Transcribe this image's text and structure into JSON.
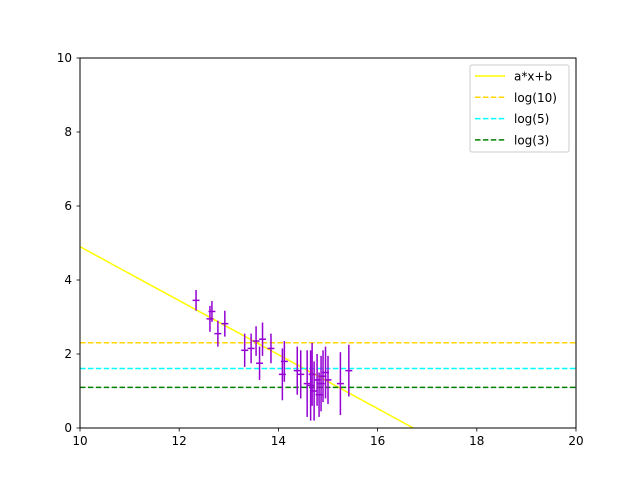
{
  "chart_data": {
    "type": "scatter",
    "title": "",
    "xlabel": "",
    "ylabel": "",
    "xlim": [
      10,
      20
    ],
    "ylim": [
      0,
      10
    ],
    "x_ticks": [
      10,
      12,
      14,
      16,
      18,
      20
    ],
    "y_ticks": [
      0,
      2,
      4,
      6,
      8,
      10
    ],
    "x_tick_labels": [
      "10",
      "12",
      "14",
      "16",
      "18",
      "20"
    ],
    "y_tick_labels": [
      "0",
      "2",
      "4",
      "6",
      "8",
      "10"
    ],
    "grid": false,
    "legend_position": "top-right",
    "series": [
      {
        "name": "a*x+b",
        "kind": "line",
        "style": "solid",
        "color": "#ffff00",
        "x": [
          10.0,
          16.72
        ],
        "y": [
          4.9,
          0.0
        ]
      },
      {
        "name": "log(10)",
        "kind": "hline",
        "style": "dashed",
        "color": "#ffd700",
        "y": 2.3026
      },
      {
        "name": "log(5)",
        "kind": "hline",
        "style": "dashed",
        "color": "#00ffff",
        "y": 1.6094
      },
      {
        "name": "log(3)",
        "kind": "hline",
        "style": "dashed",
        "color": "#008000",
        "y": 1.0986
      }
    ],
    "errorbar_series": {
      "color": "#9400d3",
      "points": [
        {
          "x": 12.34,
          "y": 3.45,
          "xerr": 0.07,
          "yerr": 0.28
        },
        {
          "x": 12.62,
          "y": 2.95,
          "xerr": 0.07,
          "yerr": 0.35
        },
        {
          "x": 12.66,
          "y": 3.15,
          "xerr": 0.07,
          "yerr": 0.28
        },
        {
          "x": 12.78,
          "y": 2.55,
          "xerr": 0.07,
          "yerr": 0.35
        },
        {
          "x": 12.92,
          "y": 2.82,
          "xerr": 0.07,
          "yerr": 0.35
        },
        {
          "x": 13.32,
          "y": 2.1,
          "xerr": 0.07,
          "yerr": 0.45
        },
        {
          "x": 13.45,
          "y": 2.15,
          "xerr": 0.07,
          "yerr": 0.4
        },
        {
          "x": 13.55,
          "y": 2.35,
          "xerr": 0.07,
          "yerr": 0.4
        },
        {
          "x": 13.62,
          "y": 1.75,
          "xerr": 0.07,
          "yerr": 0.45
        },
        {
          "x": 13.68,
          "y": 2.4,
          "xerr": 0.07,
          "yerr": 0.45
        },
        {
          "x": 13.85,
          "y": 2.15,
          "xerr": 0.07,
          "yerr": 0.4
        },
        {
          "x": 14.08,
          "y": 1.45,
          "xerr": 0.07,
          "yerr": 0.7
        },
        {
          "x": 14.12,
          "y": 1.8,
          "xerr": 0.07,
          "yerr": 0.55
        },
        {
          "x": 14.38,
          "y": 1.55,
          "xerr": 0.07,
          "yerr": 0.65
        },
        {
          "x": 14.45,
          "y": 1.45,
          "xerr": 0.07,
          "yerr": 0.65
        },
        {
          "x": 14.58,
          "y": 1.2,
          "xerr": 0.07,
          "yerr": 0.9
        },
        {
          "x": 14.65,
          "y": 1.15,
          "xerr": 0.07,
          "yerr": 0.95
        },
        {
          "x": 14.68,
          "y": 1.45,
          "xerr": 0.07,
          "yerr": 0.85
        },
        {
          "x": 14.72,
          "y": 1.0,
          "xerr": 0.07,
          "yerr": 0.8
        },
        {
          "x": 14.78,
          "y": 1.3,
          "xerr": 0.07,
          "yerr": 0.7
        },
        {
          "x": 14.82,
          "y": 0.9,
          "xerr": 0.07,
          "yerr": 0.6
        },
        {
          "x": 14.86,
          "y": 1.2,
          "xerr": 0.07,
          "yerr": 0.75
        },
        {
          "x": 14.9,
          "y": 1.4,
          "xerr": 0.07,
          "yerr": 0.7
        },
        {
          "x": 14.95,
          "y": 1.5,
          "xerr": 0.07,
          "yerr": 0.7
        },
        {
          "x": 15.0,
          "y": 1.3,
          "xerr": 0.07,
          "yerr": 0.65
        },
        {
          "x": 15.25,
          "y": 1.2,
          "xerr": 0.07,
          "yerr": 0.85
        },
        {
          "x": 15.42,
          "y": 1.55,
          "xerr": 0.07,
          "yerr": 0.7
        }
      ]
    }
  }
}
